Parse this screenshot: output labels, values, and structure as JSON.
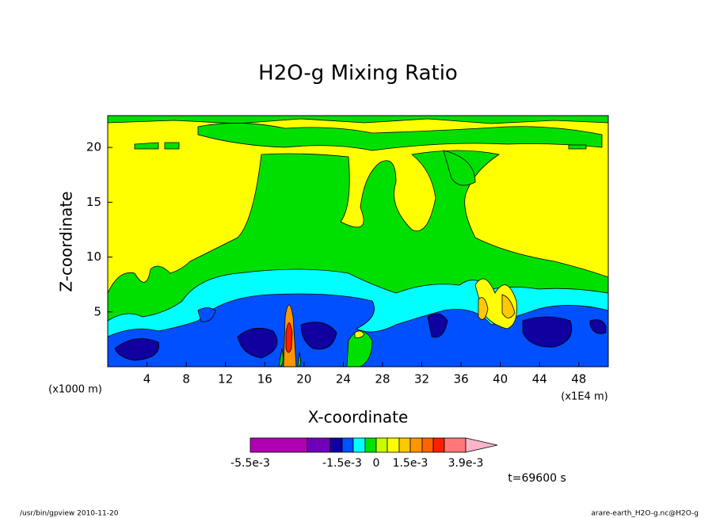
{
  "chart_data": {
    "type": "contour",
    "title": "H2O-g Mixing Ratio",
    "x_label": "X-coordinate",
    "y_label": "Z-coordinate",
    "x_unit_label": "(x1000 m)",
    "x_unit_label_right": "(x1E4 m)",
    "time_label": "t=69600 s",
    "footer_left": "/usr/bin/gpview  2010-11-20",
    "footer_right": "arare-earth_H2O-g.nc@H2O-g",
    "xlim": [
      0,
      51
    ],
    "xticks": [
      4,
      8,
      12,
      16,
      20,
      24,
      28,
      32,
      36,
      40,
      44,
      48
    ],
    "ylim": [
      0,
      22.9
    ],
    "yticks": [
      5,
      10,
      15,
      20
    ],
    "colorbar": {
      "colors": [
        "#b000b0",
        "#7000b8",
        "#1000a0",
        "#0050ff",
        "#00ffff",
        "#00e000",
        "#c8ff00",
        "#ffff00",
        "#ffc800",
        "#ff9600",
        "#ff6400",
        "#ff1e00",
        "#ff7878"
      ],
      "over_color": "#ffb4c8",
      "ticks": [
        {
          "value": -0.0055,
          "label": "-5.5e-3"
        },
        {
          "value": -0.0015,
          "label": "-1.5e-3"
        },
        0,
        {
          "value": 0.0015,
          "label": "1.5e-3"
        },
        {
          "value": 0.0039,
          "label": "3.9e-3"
        }
      ]
    }
  }
}
